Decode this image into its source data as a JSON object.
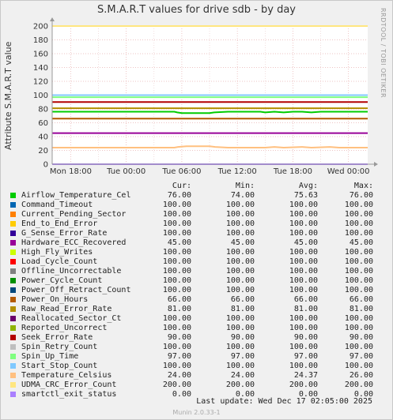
{
  "title": "S.M.A.R.T values for drive sdb - by day",
  "ylabel": "Attribute S.M.A.R.T value",
  "watermark": "RRDTOOL / TOBI OETIKER",
  "last_update": "Last update:  Wed Dec 17 02:05:00 2025",
  "footer": "Munin 2.0.33-1",
  "legend_headers": [
    "Cur:",
    "Min:",
    "Avg:",
    "Max:"
  ],
  "chart_data": {
    "type": "line",
    "title": "S.M.A.R.T values for drive sdb - by day",
    "ylabel": "Attribute S.M.A.R.T value",
    "xlabel": "",
    "ylim": [
      0,
      200
    ],
    "yticks": [
      0,
      20,
      40,
      60,
      80,
      100,
      120,
      140,
      160,
      180,
      200
    ],
    "xtick_labels": [
      "Mon 18:00",
      "Tue 00:00",
      "Tue 06:00",
      "Tue 12:00",
      "Tue 18:00",
      "Wed 00:00"
    ],
    "x_range_hours": [
      16,
      50.08
    ],
    "xtick_hours": [
      18,
      24,
      30,
      36,
      42,
      48
    ],
    "grid": true,
    "series": [
      {
        "name": "Airflow_Temperature_Cel",
        "color": "#00cc00",
        "cur": "76.00",
        "min": "74.00",
        "avg": "75.63",
        "max": "76.00"
      },
      {
        "name": "Command_Timeout",
        "color": "#0066b3",
        "cur": "100.00",
        "min": "100.00",
        "avg": "100.00",
        "max": "100.00"
      },
      {
        "name": "Current_Pending_Sector",
        "color": "#ff8000",
        "cur": "100.00",
        "min": "100.00",
        "avg": "100.00",
        "max": "100.00"
      },
      {
        "name": "End_to_End_Error",
        "color": "#ffcc00",
        "cur": "100.00",
        "min": "100.00",
        "avg": "100.00",
        "max": "100.00"
      },
      {
        "name": "G_Sense_Error_Rate",
        "color": "#330099",
        "cur": "100.00",
        "min": "100.00",
        "avg": "100.00",
        "max": "100.00"
      },
      {
        "name": "Hardware_ECC_Recovered",
        "color": "#990099",
        "cur": "45.00",
        "min": "45.00",
        "avg": "45.00",
        "max": "45.00"
      },
      {
        "name": "High_Fly_Writes",
        "color": "#ccff00",
        "cur": "100.00",
        "min": "100.00",
        "avg": "100.00",
        "max": "100.00"
      },
      {
        "name": "Load_Cycle_Count",
        "color": "#ff0000",
        "cur": "100.00",
        "min": "100.00",
        "avg": "100.00",
        "max": "100.00"
      },
      {
        "name": "Offline_Uncorrectable",
        "color": "#808080",
        "cur": "100.00",
        "min": "100.00",
        "avg": "100.00",
        "max": "100.00"
      },
      {
        "name": "Power_Cycle_Count",
        "color": "#008f00",
        "cur": "100.00",
        "min": "100.00",
        "avg": "100.00",
        "max": "100.00"
      },
      {
        "name": "Power_Off_Retract_Count",
        "color": "#00487d",
        "cur": "100.00",
        "min": "100.00",
        "avg": "100.00",
        "max": "100.00"
      },
      {
        "name": "Power_On_Hours",
        "color": "#b35a00",
        "cur": "66.00",
        "min": "66.00",
        "avg": "66.00",
        "max": "66.00"
      },
      {
        "name": "Raw_Read_Error_Rate",
        "color": "#b38f00",
        "cur": "81.00",
        "min": "81.00",
        "avg": "81.00",
        "max": "81.00"
      },
      {
        "name": "Reallocated_Sector_Ct",
        "color": "#6b006b",
        "cur": "100.00",
        "min": "100.00",
        "avg": "100.00",
        "max": "100.00"
      },
      {
        "name": "Reported_Uncorrect",
        "color": "#8fb300",
        "cur": "100.00",
        "min": "100.00",
        "avg": "100.00",
        "max": "100.00"
      },
      {
        "name": "Seek_Error_Rate",
        "color": "#b30000",
        "cur": "90.00",
        "min": "90.00",
        "avg": "90.00",
        "max": "90.00"
      },
      {
        "name": "Spin_Retry_Count",
        "color": "#bebebe",
        "cur": "100.00",
        "min": "100.00",
        "avg": "100.00",
        "max": "100.00"
      },
      {
        "name": "Spin_Up_Time",
        "color": "#80ff80",
        "cur": "97.00",
        "min": "97.00",
        "avg": "97.00",
        "max": "97.00"
      },
      {
        "name": "Start_Stop_Count",
        "color": "#80c9ff",
        "cur": "100.00",
        "min": "100.00",
        "avg": "100.00",
        "max": "100.00"
      },
      {
        "name": "Temperature_Celsius",
        "color": "#ffc080",
        "cur": "24.00",
        "min": "24.00",
        "avg": "24.37",
        "max": "26.00"
      },
      {
        "name": "UDMA_CRC_Error_Count",
        "color": "#ffe680",
        "cur": "200.00",
        "min": "200.00",
        "avg": "200.00",
        "max": "200.00"
      },
      {
        "name": "smartctl_exit_status",
        "color": "#aa80ff",
        "cur": "0.00",
        "min": "0.00",
        "avg": "0.00",
        "max": "0.00"
      }
    ],
    "lines": [
      {
        "name": "UDMA_CRC_Error_Count",
        "points": [
          [
            16,
            200
          ],
          [
            50.08,
            200
          ]
        ]
      },
      {
        "name": "Command_Timeout",
        "points": [
          [
            16,
            100
          ],
          [
            50.08,
            100
          ]
        ]
      },
      {
        "name": "Start_Stop_Count",
        "points": [
          [
            16,
            100
          ],
          [
            50.08,
            100
          ]
        ]
      },
      {
        "name": "Spin_Up_Time",
        "points": [
          [
            16,
            97
          ],
          [
            50.08,
            97
          ]
        ]
      },
      {
        "name": "Seek_Error_Rate",
        "points": [
          [
            16,
            90
          ],
          [
            50.08,
            90
          ]
        ]
      },
      {
        "name": "Raw_Read_Error_Rate",
        "points": [
          [
            16,
            81
          ],
          [
            50.08,
            81
          ]
        ]
      },
      {
        "name": "Airflow_Temperature_Cel",
        "points": [
          [
            16,
            76
          ],
          [
            29.2,
            76
          ],
          [
            29.5,
            75
          ],
          [
            30,
            74
          ],
          [
            33,
            74
          ],
          [
            33.5,
            75
          ],
          [
            35,
            76
          ],
          [
            38.5,
            76
          ],
          [
            39,
            75
          ],
          [
            40,
            76
          ],
          [
            41,
            75
          ],
          [
            42,
            76
          ],
          [
            43,
            76
          ],
          [
            44,
            75
          ],
          [
            45,
            76
          ],
          [
            50.08,
            76
          ]
        ]
      },
      {
        "name": "Power_On_Hours",
        "points": [
          [
            16,
            66
          ],
          [
            50.08,
            66
          ]
        ]
      },
      {
        "name": "Hardware_ECC_Recovered",
        "points": [
          [
            16,
            45
          ],
          [
            50.08,
            45
          ]
        ]
      },
      {
        "name": "Temperature_Celsius",
        "points": [
          [
            16,
            24
          ],
          [
            29.2,
            24
          ],
          [
            29.6,
            25
          ],
          [
            30.5,
            26
          ],
          [
            33,
            26
          ],
          [
            33.6,
            25
          ],
          [
            35,
            24
          ],
          [
            39,
            24
          ],
          [
            40,
            25
          ],
          [
            41,
            24
          ],
          [
            43,
            25
          ],
          [
            44,
            24
          ],
          [
            46,
            25
          ],
          [
            47,
            24
          ],
          [
            50.08,
            24
          ]
        ]
      },
      {
        "name": "smartctl_exit_status",
        "points": [
          [
            16,
            0
          ],
          [
            50.08,
            0
          ]
        ]
      }
    ]
  }
}
